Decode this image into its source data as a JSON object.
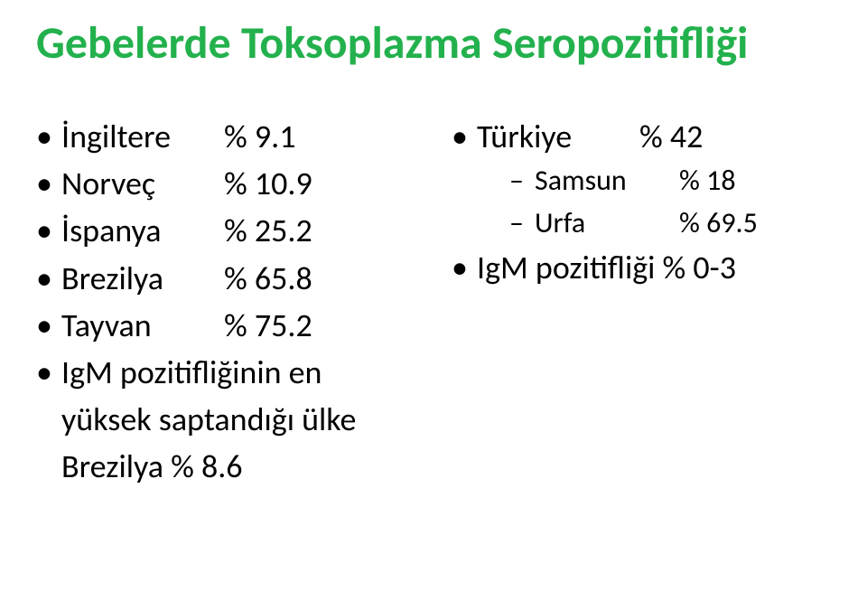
{
  "colors": {
    "title": "#23b14d",
    "text": "#000000",
    "background": "#ffffff"
  },
  "title": "Gebelerde Toksoplazma Seropozitifliği",
  "left": {
    "items": [
      {
        "country": "İngiltere",
        "value": "% 9.1"
      },
      {
        "country": "Norveç",
        "value": "% 10.9"
      },
      {
        "country": "İspanya",
        "value": "% 25.2"
      },
      {
        "country": "Brezilya",
        "value": "% 65.8"
      },
      {
        "country": "Tayvan",
        "value": "% 75.2"
      }
    ],
    "footer": "IgM pozitifliğinin en yüksek saptandığı ülke Brezilya     % 8.6"
  },
  "right": {
    "items": [
      {
        "country": "Türkiye",
        "value": "% 42",
        "subitems": [
          {
            "country": "Samsun",
            "value": "% 18"
          },
          {
            "country": "Urfa",
            "value": "% 69.5"
          }
        ]
      }
    ],
    "second": "IgM pozitifliği  % 0-3"
  }
}
